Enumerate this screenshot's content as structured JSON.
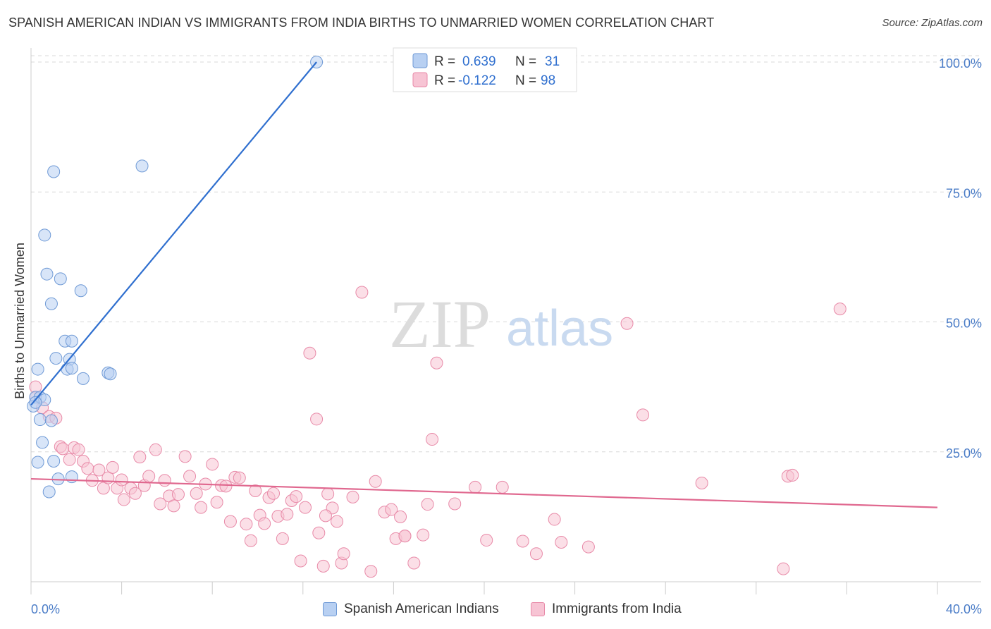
{
  "title": "SPANISH AMERICAN INDIAN VS IMMIGRANTS FROM INDIA BIRTHS TO UNMARRIED WOMEN CORRELATION CHART",
  "source": "Source: ZipAtlas.com",
  "watermark": {
    "zip": "ZIP",
    "atlas": "atlas"
  },
  "legend_stats": {
    "r_label": "R =",
    "n_label": "N =",
    "rows": [
      {
        "r": "0.639",
        "n": "31"
      },
      {
        "r": "-0.122",
        "n": "98"
      }
    ]
  },
  "legend_bottom": [
    "Spanish American Indians",
    "Immigrants from India"
  ],
  "colors": {
    "blue_fill": "#b8d0f2",
    "blue_stroke": "#6f9ad6",
    "blue_line": "#2f6fcf",
    "pink_fill": "#f7c4d4",
    "pink_stroke": "#e88aa8",
    "pink_line": "#e0688f",
    "grid": "#d8d8d8",
    "axis_text": "#4a7cc7"
  },
  "chart_data": {
    "type": "scatter",
    "title": "SPANISH AMERICAN INDIAN VS IMMIGRANTS FROM INDIA BIRTHS TO UNMARRIED WOMEN CORRELATION CHART",
    "xlabel": "",
    "ylabel": "Births to Unmarried Women",
    "xlim": [
      0,
      40
    ],
    "ylim": [
      0,
      102
    ],
    "x_tick_labels": [
      "0.0%",
      "40.0%"
    ],
    "y_ticks": [
      25,
      50,
      75,
      100
    ],
    "y_tick_labels": [
      "25.0%",
      "50.0%",
      "75.0%",
      "100.0%"
    ],
    "grid": true,
    "legend_position": "top-center",
    "series": [
      {
        "name": "Spanish American Indians",
        "color": "#6f9ad6",
        "points": [
          [
            12.6,
            100.0
          ],
          [
            4.9,
            80.0
          ],
          [
            1.0,
            78.9
          ],
          [
            0.6,
            66.7
          ],
          [
            0.7,
            59.2
          ],
          [
            1.3,
            58.3
          ],
          [
            2.2,
            56.0
          ],
          [
            0.9,
            53.5
          ],
          [
            1.5,
            46.3
          ],
          [
            1.8,
            46.3
          ],
          [
            1.1,
            43.0
          ],
          [
            1.7,
            42.8
          ],
          [
            0.3,
            40.9
          ],
          [
            1.6,
            40.9
          ],
          [
            1.8,
            41.1
          ],
          [
            2.3,
            39.1
          ],
          [
            3.4,
            40.2
          ],
          [
            3.5,
            40.0
          ],
          [
            0.2,
            35.5
          ],
          [
            0.4,
            35.5
          ],
          [
            0.6,
            35.0
          ],
          [
            0.1,
            33.8
          ],
          [
            0.4,
            31.2
          ],
          [
            0.9,
            31.0
          ],
          [
            0.5,
            26.8
          ],
          [
            0.3,
            23.0
          ],
          [
            1.0,
            23.2
          ],
          [
            1.2,
            19.8
          ],
          [
            1.8,
            20.2
          ],
          [
            0.8,
            17.3
          ],
          [
            0.2,
            34.5
          ]
        ],
        "trend": {
          "x": [
            0.0,
            12.6
          ],
          "y": [
            34.0,
            100.0
          ]
        }
      },
      {
        "name": "Immigrants from India",
        "color": "#e88aa8",
        "points": [
          [
            0.2,
            37.5
          ],
          [
            0.2,
            35.5
          ],
          [
            0.5,
            33.5
          ],
          [
            0.8,
            31.8
          ],
          [
            1.1,
            31.5
          ],
          [
            1.3,
            26.0
          ],
          [
            1.4,
            25.6
          ],
          [
            1.7,
            23.5
          ],
          [
            1.9,
            25.8
          ],
          [
            2.1,
            25.4
          ],
          [
            2.3,
            23.2
          ],
          [
            2.5,
            21.8
          ],
          [
            2.7,
            19.5
          ],
          [
            3.0,
            21.5
          ],
          [
            3.2,
            18.0
          ],
          [
            3.4,
            20.0
          ],
          [
            3.6,
            22.0
          ],
          [
            3.8,
            18.0
          ],
          [
            4.0,
            19.6
          ],
          [
            4.1,
            15.8
          ],
          [
            4.4,
            18.0
          ],
          [
            4.6,
            17.0
          ],
          [
            4.8,
            24.0
          ],
          [
            5.0,
            18.5
          ],
          [
            5.2,
            20.3
          ],
          [
            5.5,
            25.4
          ],
          [
            5.7,
            15.0
          ],
          [
            5.9,
            19.5
          ],
          [
            6.1,
            16.5
          ],
          [
            6.3,
            14.6
          ],
          [
            6.5,
            16.8
          ],
          [
            6.8,
            24.1
          ],
          [
            7.0,
            20.3
          ],
          [
            7.3,
            17.0
          ],
          [
            7.5,
            14.3
          ],
          [
            7.7,
            18.8
          ],
          [
            8.0,
            22.6
          ],
          [
            8.2,
            15.3
          ],
          [
            8.4,
            18.5
          ],
          [
            8.6,
            18.4
          ],
          [
            8.8,
            11.6
          ],
          [
            9.0,
            20.1
          ],
          [
            9.2,
            20.0
          ],
          [
            9.5,
            11.1
          ],
          [
            9.7,
            7.9
          ],
          [
            9.9,
            17.5
          ],
          [
            10.1,
            12.8
          ],
          [
            10.3,
            11.2
          ],
          [
            10.5,
            16.2
          ],
          [
            10.7,
            17.0
          ],
          [
            10.9,
            12.6
          ],
          [
            11.1,
            8.3
          ],
          [
            11.3,
            13.0
          ],
          [
            11.5,
            15.6
          ],
          [
            11.7,
            16.4
          ],
          [
            11.9,
            4.0
          ],
          [
            12.1,
            14.3
          ],
          [
            12.3,
            44.0
          ],
          [
            12.6,
            31.3
          ],
          [
            12.7,
            9.4
          ],
          [
            12.9,
            3.0
          ],
          [
            13.1,
            16.9
          ],
          [
            13.3,
            14.2
          ],
          [
            13.5,
            11.6
          ],
          [
            13.7,
            3.6
          ],
          [
            13.8,
            5.4
          ],
          [
            14.2,
            16.3
          ],
          [
            14.6,
            55.7
          ],
          [
            15.0,
            2.0
          ],
          [
            15.2,
            19.3
          ],
          [
            15.6,
            13.4
          ],
          [
            15.9,
            13.9
          ],
          [
            16.1,
            8.3
          ],
          [
            16.3,
            12.5
          ],
          [
            16.5,
            8.8
          ],
          [
            16.9,
            3.6
          ],
          [
            17.3,
            9.0
          ],
          [
            17.5,
            14.9
          ],
          [
            17.7,
            27.4
          ],
          [
            17.9,
            42.1
          ],
          [
            18.7,
            15.0
          ],
          [
            19.6,
            18.2
          ],
          [
            20.1,
            8.0
          ],
          [
            20.8,
            18.2
          ],
          [
            21.7,
            7.8
          ],
          [
            22.3,
            5.4
          ],
          [
            23.1,
            12.0
          ],
          [
            23.4,
            7.6
          ],
          [
            24.6,
            6.7
          ],
          [
            26.3,
            49.7
          ],
          [
            27.0,
            32.1
          ],
          [
            29.6,
            19.0
          ],
          [
            33.4,
            20.3
          ],
          [
            33.6,
            20.5
          ],
          [
            33.2,
            2.5
          ],
          [
            35.7,
            52.5
          ],
          [
            16.5,
            8.8
          ],
          [
            13.0,
            12.7
          ]
        ],
        "trend": {
          "x": [
            0.0,
            40.0
          ],
          "y": [
            19.8,
            14.3
          ]
        }
      }
    ]
  }
}
